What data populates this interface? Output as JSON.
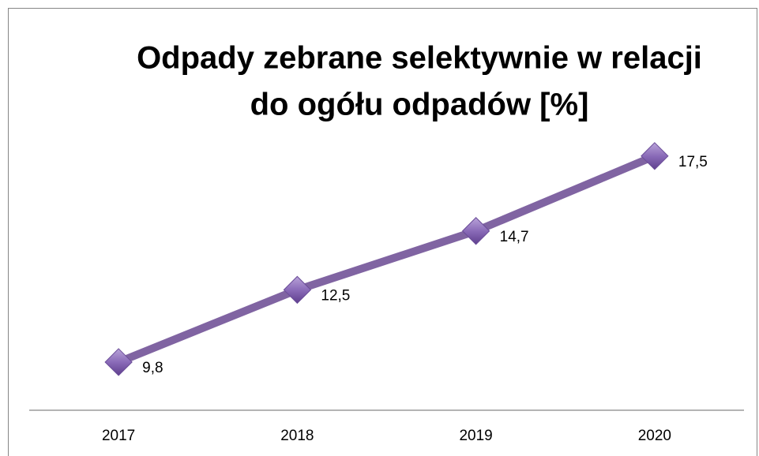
{
  "chart_data": {
    "type": "line",
    "title": [
      "Odpady zebrane selektywnie w relacji",
      "do ogółu odpadów [%]"
    ],
    "categories": [
      "2017",
      "2018",
      "2019",
      "2020"
    ],
    "series": [
      {
        "name": "Odpady zebrane selektywnie",
        "color": "#8064a2",
        "values": [
          9.8,
          12.5,
          14.7,
          17.5
        ],
        "value_labels": [
          "9,8",
          "12,5",
          "14,7",
          "17,5"
        ]
      }
    ],
    "ylim": [
      8,
      20
    ]
  }
}
